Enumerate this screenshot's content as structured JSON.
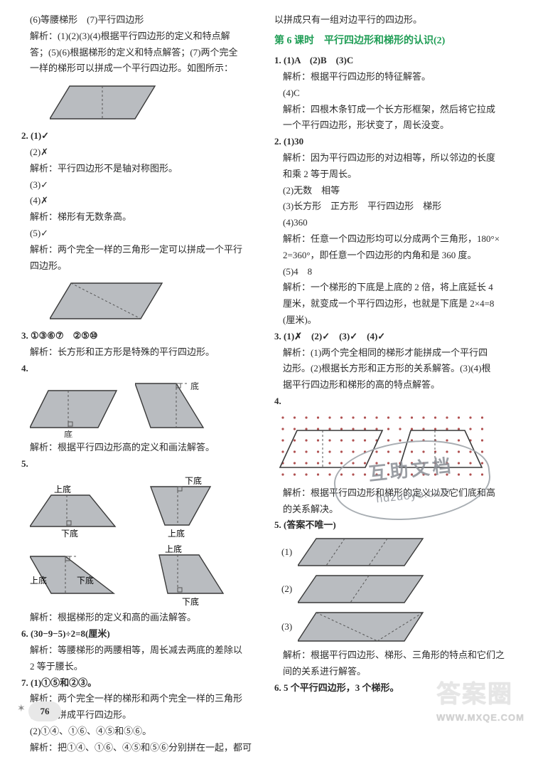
{
  "left": {
    "l1": "(6)等腰梯形　(7)平行四边形",
    "l2": "解析：(1)(2)(3)(4)根据平行四边形的定义和特点解",
    "l3": "答；(5)(6)根据梯形的定义和特点解答；(7)两个完全",
    "l4": "一样的梯形可以拼成一个平行四边形。如图所示：",
    "q2": "2. (1)✓",
    "q2b": "(2)✗",
    "q2b_exp": "解析：平行四边形不是轴对称图形。",
    "q2c": "(3)✓",
    "q2d": "(4)✗",
    "q2d_exp": "解析：梯形有无数条高。",
    "q2e": "(5)✓",
    "q2e_exp": "解析：两个完全一样的三角形一定可以拼成一个平行",
    "q2e_exp2": "四边形。",
    "q3": "3. ①③⑥⑦　②⑤⑩",
    "q3_exp": "解析：长方形和正方形是特殊的平行四边形。",
    "q4": "4.",
    "q4_lbl_di": "底",
    "q4_exp": "解析：根据平行四边形高的定义和画法解答。",
    "q5": "5.",
    "q5_top": "上底",
    "q5_bot": "下底",
    "q5_exp": "解析：根据梯形的定义和高的画法解答。",
    "q6": "6. (30−9−5)÷2=8(厘米)",
    "q6_exp": "解析：等腰梯形的两腰相等，周长减去两底的差除以",
    "q6_exp2": "2 等于腰长。",
    "q7": "7. (1)①⑤和②③。",
    "q7_exp": "解析：两个完全一样的梯形和两个完全一样的三角形",
    "q7_exp2": "都可以拼成平行四边形。",
    "q7b": "(2)①④、①⑥、④⑤和⑤⑥。",
    "q7b_exp": "解析：把①④、①⑥、④⑤和⑤⑥分别拼在一起，都可"
  },
  "right": {
    "r0": "以拼成只有一组对边平行的四边形。",
    "lesson": "第 6 课时　平行四边形和梯形的认识(2)",
    "r1": "1. (1)A　(2)B　(3)C",
    "r1_exp": "解析：根据平行四边形的特征解答。",
    "r1b": "(4)C",
    "r1b_exp": "解析：四根木条钉成一个长方形框架，然后将它拉成",
    "r1b_exp2": "一个平行四边形，形状变了，周长没变。",
    "r2": "2. (1)30",
    "r2_exp": "解析：因为平行四边形的对边相等，所以邻边的长度",
    "r2_exp2": "和乘 2 等于周长。",
    "r2b": "(2)无数　相等",
    "r2c": "(3)长方形　正方形　平行四边形　梯形",
    "r2d": "(4)360",
    "r2d_exp": "解析：任意一个四边形均可以分成两个三角形，180°×",
    "r2d_exp2": "2=360°，即任意一个四边形的内角和是 360 度。",
    "r2e": "(5)4　8",
    "r2e_exp": "解析：一个梯形的下底是上底的 2 倍，将上底延长 4",
    "r2e_exp2": "厘米，就变成一个平行四边形，也就是下底是 2×4=8",
    "r2e_exp3": "(厘米)。",
    "r3": "3. (1)✗　(2)✓　(3)✓　(4)✓",
    "r3_exp": "解析：(1)两个完全相同的梯形才能拼成一个平行四",
    "r3_exp2": "边形。(2)根据长方形和正方形的关系解答。(3)(4)根",
    "r3_exp3": "据平行四边形和梯形的高的特点解答。",
    "r4": "4.",
    "r4_exp": "解析：根据平行四边形和梯形的定义以及它们底和高",
    "r4_exp2": "的关系解决。",
    "r5": "5. (答案不唯一)",
    "r5_1": "(1)",
    "r5_2": "(2)",
    "r5_3": "(3)",
    "r5_exp": "解析：根据平行四边形、梯形、三角形的特点和它们之",
    "r5_exp2": "间的关系进行解答。",
    "r6": "6. 5 个平行四边形，3 个梯形。"
  },
  "page_number": "76",
  "watermark": {
    "line1": "互助文档",
    "line2": "hdzuoye.com"
  },
  "corner": {
    "big": "答案圈",
    "small": "WWW.MXQE.COM"
  },
  "colors": {
    "shape_fill": "#b9bcc0",
    "shape_stroke": "#3a3a3a",
    "dash": "#555",
    "dot": "#b05050"
  }
}
